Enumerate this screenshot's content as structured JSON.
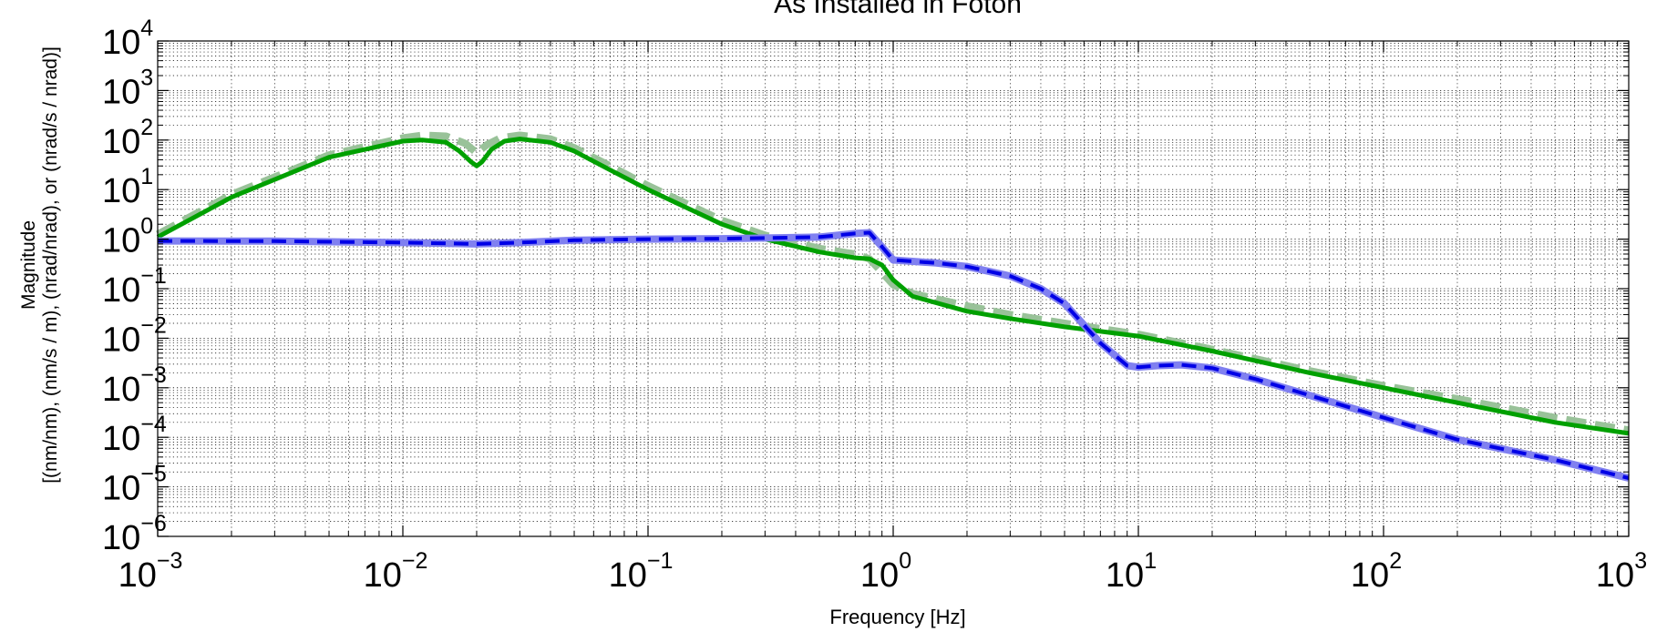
{
  "chart_data": {
    "type": "line",
    "title": "As Installed in Foton",
    "xlabel": "Frequency [Hz]",
    "ylabel_line1": "Magnitude",
    "ylabel_line2": "[(nm/nm), (nm/s / m), (nrad/nrad), or (nrad/s / nrad)]",
    "x_scale": "log",
    "y_scale": "log",
    "xlim": [
      0.001,
      1000
    ],
    "ylim": [
      1e-06,
      10000
    ],
    "grid": true,
    "x_ticks": [
      {
        "base": "10",
        "exp": "−3"
      },
      {
        "base": "10",
        "exp": "−2"
      },
      {
        "base": "10",
        "exp": "−1"
      },
      {
        "base": "10",
        "exp": "0"
      },
      {
        "base": "10",
        "exp": "1"
      },
      {
        "base": "10",
        "exp": "2"
      },
      {
        "base": "10",
        "exp": "3"
      }
    ],
    "y_ticks": [
      {
        "base": "10",
        "exp": "4"
      },
      {
        "base": "10",
        "exp": "3"
      },
      {
        "base": "10",
        "exp": "2"
      },
      {
        "base": "10",
        "exp": "1"
      },
      {
        "base": "10",
        "exp": "0"
      },
      {
        "base": "10",
        "exp": "−1"
      },
      {
        "base": "10",
        "exp": "−2"
      },
      {
        "base": "10",
        "exp": "−3"
      },
      {
        "base": "10",
        "exp": "−4"
      },
      {
        "base": "10",
        "exp": "−5"
      },
      {
        "base": "10",
        "exp": "−6"
      }
    ],
    "series": [
      {
        "color": "#99c299",
        "style": "dashed-wide",
        "x": [
          0.001,
          0.002,
          0.005,
          0.01,
          0.012,
          0.015,
          0.018,
          0.02,
          0.022,
          0.025,
          0.03,
          0.04,
          0.05,
          0.07,
          0.1,
          0.2,
          0.3,
          0.5,
          0.7,
          0.8,
          1,
          1.2,
          2,
          3,
          5,
          10,
          20,
          50,
          100,
          200,
          500,
          1000
        ],
        "y": [
          1.25,
          8,
          50,
          110,
          125,
          120,
          85,
          55,
          80,
          110,
          125,
          105,
          70,
          30,
          12,
          2.4,
          1.2,
          0.65,
          0.5,
          0.4,
          0.12,
          0.08,
          0.045,
          0.03,
          0.02,
          0.012,
          0.006,
          0.0022,
          0.0011,
          0.0006,
          0.00025,
          0.00014
        ]
      },
      {
        "color": "#00a000",
        "style": "solid",
        "x": [
          0.001,
          0.002,
          0.005,
          0.01,
          0.012,
          0.015,
          0.017,
          0.019,
          0.02,
          0.021,
          0.023,
          0.026,
          0.03,
          0.04,
          0.05,
          0.07,
          0.1,
          0.2,
          0.3,
          0.5,
          0.7,
          0.8,
          0.9,
          1,
          1.2,
          2,
          3,
          5,
          10,
          20,
          50,
          100,
          200,
          500,
          1000
        ],
        "y": [
          1.1,
          7,
          45,
          95,
          100,
          90,
          60,
          36,
          30,
          36,
          65,
          95,
          105,
          90,
          60,
          25,
          10,
          2,
          1,
          0.55,
          0.42,
          0.4,
          0.3,
          0.15,
          0.07,
          0.035,
          0.025,
          0.017,
          0.011,
          0.0055,
          0.002,
          0.001,
          0.0005,
          0.0002,
          0.00012
        ]
      },
      {
        "color": "#8080f0",
        "style": "solid-wide",
        "x": [
          0.001,
          0.003,
          0.01,
          0.02,
          0.03,
          0.05,
          0.1,
          0.2,
          0.3,
          0.5,
          0.7,
          0.8,
          0.9,
          1,
          1.5,
          2,
          3,
          4,
          5,
          7,
          9,
          10,
          12,
          15,
          20,
          30,
          50,
          100,
          200,
          500,
          1000
        ],
        "y": [
          0.92,
          0.91,
          0.85,
          0.8,
          0.85,
          0.95,
          1.0,
          1.02,
          1.05,
          1.1,
          1.3,
          1.35,
          0.7,
          0.38,
          0.33,
          0.28,
          0.18,
          0.1,
          0.05,
          0.008,
          0.0028,
          0.0026,
          0.0028,
          0.0029,
          0.0025,
          0.0015,
          0.0007,
          0.00025,
          9e-05,
          3.5e-05,
          1.5e-05
        ]
      },
      {
        "color": "#0000e6",
        "style": "dashed",
        "x": [
          0.001,
          0.003,
          0.01,
          0.02,
          0.03,
          0.05,
          0.1,
          0.2,
          0.3,
          0.5,
          0.7,
          0.8,
          0.9,
          1,
          1.5,
          2,
          3,
          4,
          5,
          7,
          9,
          10,
          12,
          15,
          20,
          30,
          50,
          100,
          200,
          500,
          1000
        ],
        "y": [
          0.92,
          0.91,
          0.85,
          0.8,
          0.85,
          0.95,
          1.0,
          1.02,
          1.05,
          1.1,
          1.3,
          1.35,
          0.7,
          0.38,
          0.33,
          0.28,
          0.18,
          0.1,
          0.05,
          0.008,
          0.0028,
          0.0026,
          0.0028,
          0.0029,
          0.0025,
          0.0015,
          0.0007,
          0.00025,
          9e-05,
          3.5e-05,
          1.5e-05
        ]
      }
    ]
  }
}
